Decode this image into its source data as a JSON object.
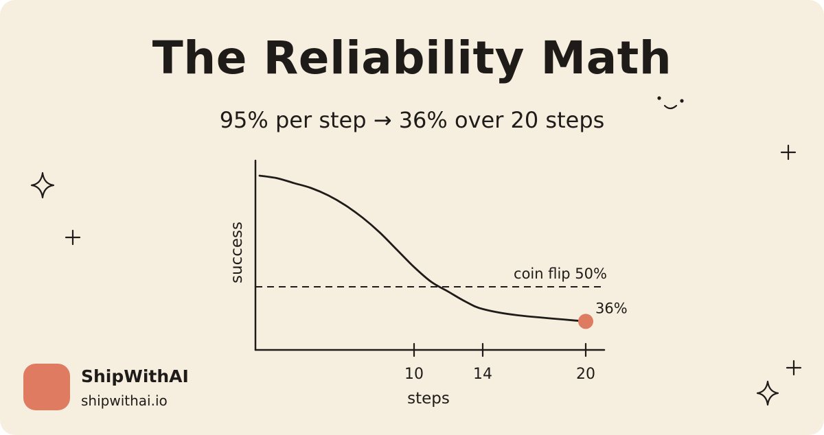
{
  "header": {
    "title": "The Reliability Math",
    "subtitle": "95% per step → 36% over 20 steps"
  },
  "chart_data": {
    "type": "line",
    "title": "The Reliability Math",
    "subtitle": "95% per step → 36% over 20 steps",
    "xlabel": "steps",
    "ylabel": "success",
    "xlim": [
      1,
      21
    ],
    "ylim": [
      25,
      100
    ],
    "xticks": [
      10,
      14,
      20
    ],
    "grid": false,
    "series": [
      {
        "values": [
          95,
          94,
          92,
          90,
          87,
          83,
          78,
          72,
          65,
          58,
          52,
          48,
          44,
          41,
          38.5,
          36
        ],
        "x": [
          1,
          2,
          3,
          4,
          5,
          6,
          7,
          8,
          9,
          10,
          11,
          12,
          13,
          14,
          16,
          20
        ],
        "smoothed": true
      }
    ],
    "reference_line": {
      "y": 50,
      "label": "coin flip 50%",
      "style": "dashed"
    },
    "highlight_point": {
      "x": 20,
      "y": 36,
      "label": "36%"
    },
    "colors": {
      "line": "#1e1b18",
      "highlight": "#de7b61",
      "background": "#f6efe0"
    }
  },
  "brand": {
    "name": "ShipWithAI",
    "url": "shipwithai.io",
    "color": "#de7b61"
  },
  "decorations": [
    "sparkle-icon",
    "plus-icon",
    "smile-icon"
  ]
}
